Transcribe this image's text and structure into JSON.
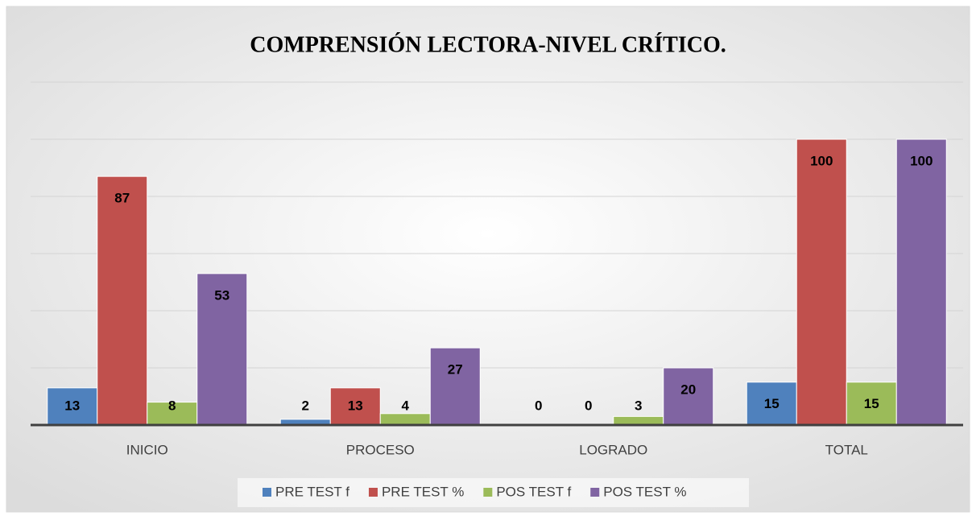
{
  "chart_data": {
    "type": "bar",
    "title": "COMPRENSIÓN LECTORA-NIVEL CRÍTICO.",
    "categories": [
      "INICIO",
      "PROCESO",
      "LOGRADO",
      "TOTAL"
    ],
    "series": [
      {
        "name": "PRE TEST f",
        "color": "#4f81bd",
        "values": [
          13,
          2,
          0,
          15
        ]
      },
      {
        "name": "PRE TEST %",
        "color": "#c0504d",
        "values": [
          87,
          13,
          0,
          100
        ]
      },
      {
        "name": "POS TEST f",
        "color": "#9bbb59",
        "values": [
          8,
          4,
          3,
          15
        ]
      },
      {
        "name": "POS TEST %",
        "color": "#8064a2",
        "values": [
          53,
          27,
          20,
          100
        ]
      }
    ],
    "ylim": [
      0,
      120
    ],
    "yticks": [
      0,
      20,
      40,
      60,
      80,
      100,
      120
    ],
    "grid": true,
    "legend": "bottom"
  }
}
